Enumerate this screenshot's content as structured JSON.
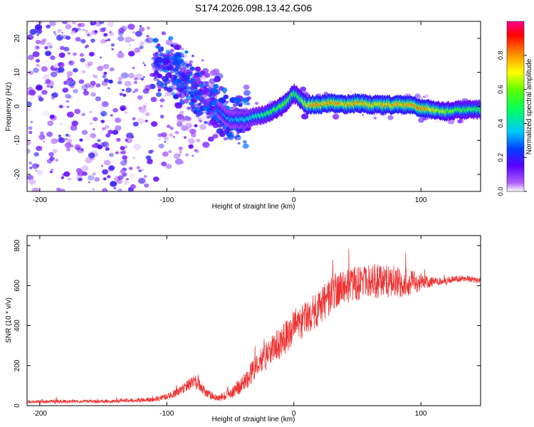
{
  "figure_title": "S174.2026.098.13.42.G06",
  "chart_data": [
    {
      "type": "heatmap",
      "title": "S174.2026.098.13.42.G06",
      "xlabel": "Height of straight line (km)",
      "ylabel": "Frequency (Hz)",
      "xlim": [
        -210,
        147
      ],
      "ylim": [
        -25,
        25
      ],
      "xticks": [
        -200,
        -100,
        0,
        100
      ],
      "yticks": [
        20,
        10,
        0,
        -10,
        -20
      ],
      "colorbar": {
        "label": "Normalized spectral amplitude",
        "range": [
          0,
          1
        ],
        "ticks": [
          0.0,
          0.2,
          0.4,
          0.6,
          0.8
        ],
        "colormap": [
          "#ffffff",
          "#9b30ff",
          "#1a00ff",
          "#00e0ff",
          "#00ff40",
          "#ffff00",
          "#ff0000",
          "#ff0090"
        ]
      },
      "ridge_km": [
        -210,
        -100,
        -85,
        -70,
        -60,
        -50,
        -40,
        -30,
        -20,
        -10,
        -5,
        0,
        5,
        10,
        20,
        30,
        40,
        50,
        60,
        70,
        80,
        90,
        100,
        110,
        120,
        130,
        147
      ],
      "ridge_hz": [
        15,
        12,
        7,
        3,
        -1,
        -4,
        -4,
        -3,
        -2,
        0,
        1.5,
        4,
        2,
        0.5,
        0.5,
        1,
        0.5,
        1,
        0.5,
        0.5,
        0.5,
        0.5,
        -0.5,
        -1,
        -1.5,
        -1,
        -1
      ],
      "ridge_amplitude": [
        0.3,
        0.3,
        0.25,
        0.2,
        0.3,
        0.35,
        0.4,
        0.45,
        0.55,
        0.6,
        0.65,
        0.55,
        0.6,
        0.8,
        0.85,
        0.85,
        0.8,
        0.85,
        0.75,
        0.8,
        0.85,
        0.85,
        0.9,
        0.75,
        0.65,
        0.6,
        0.55
      ]
    },
    {
      "type": "line",
      "xlabel": "Height of straight line (km)",
      "ylabel": "SNR (10 * v/v)",
      "xlim": [
        -210,
        147
      ],
      "ylim": [
        0,
        850
      ],
      "xticks": [
        -200,
        -100,
        0,
        100
      ],
      "yticks": [
        0,
        200,
        400,
        600,
        800
      ],
      "color": "#ee3333",
      "envelope_x": [
        -210,
        -150,
        -110,
        -100,
        -90,
        -80,
        -75,
        -70,
        -60,
        -50,
        -40,
        -30,
        -20,
        -10,
        0,
        10,
        20,
        30,
        40,
        50,
        60,
        70,
        80,
        90,
        100,
        110,
        120,
        130,
        140,
        147
      ],
      "envelope_mean": [
        20,
        22,
        30,
        45,
        70,
        115,
        110,
        65,
        35,
        60,
        110,
        190,
        260,
        320,
        390,
        440,
        480,
        560,
        600,
        610,
        620,
        625,
        620,
        610,
        620,
        620,
        625,
        635,
        630,
        625
      ],
      "envelope_spread": [
        15,
        15,
        20,
        30,
        40,
        60,
        60,
        40,
        30,
        50,
        80,
        110,
        130,
        150,
        160,
        160,
        170,
        170,
        160,
        160,
        160,
        160,
        150,
        130,
        80,
        40,
        30,
        30,
        30,
        30
      ]
    }
  ]
}
